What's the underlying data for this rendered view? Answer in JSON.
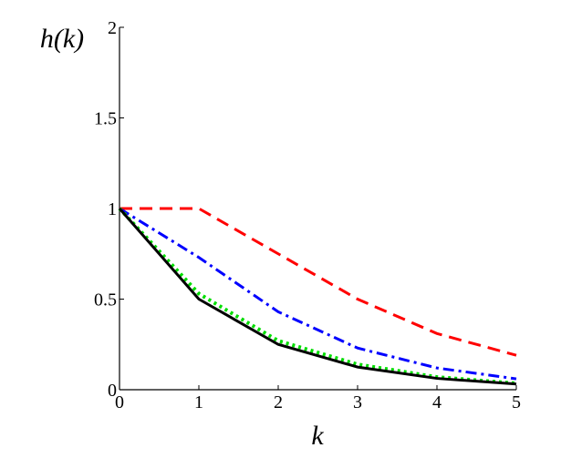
{
  "chart_data": {
    "type": "line",
    "ylabel": "h(k)",
    "xlabel": "k",
    "x": [
      0,
      1,
      2,
      3,
      4,
      5
    ],
    "series": [
      {
        "color": "#ff0000",
        "style": "dashed",
        "values": [
          1,
          1,
          0.75,
          0.5,
          0.31,
          0.19
        ]
      },
      {
        "color": "#0000ff",
        "style": "dashdot",
        "values": [
          1,
          0.73,
          0.43,
          0.23,
          0.12,
          0.06
        ]
      },
      {
        "color": "#00dd00",
        "style": "dotted",
        "values": [
          1,
          0.53,
          0.27,
          0.14,
          0.07,
          0.035
        ]
      },
      {
        "color": "#000000",
        "style": "solid",
        "values": [
          1,
          0.5,
          0.25,
          0.125,
          0.0625,
          0.03125
        ]
      }
    ],
    "xlim": [
      0,
      5
    ],
    "ylim": [
      0,
      2
    ],
    "xticks": [
      0,
      1,
      2,
      3,
      4,
      5
    ],
    "yticks": [
      0,
      0.5,
      1,
      1.5,
      2
    ],
    "grid": false
  }
}
